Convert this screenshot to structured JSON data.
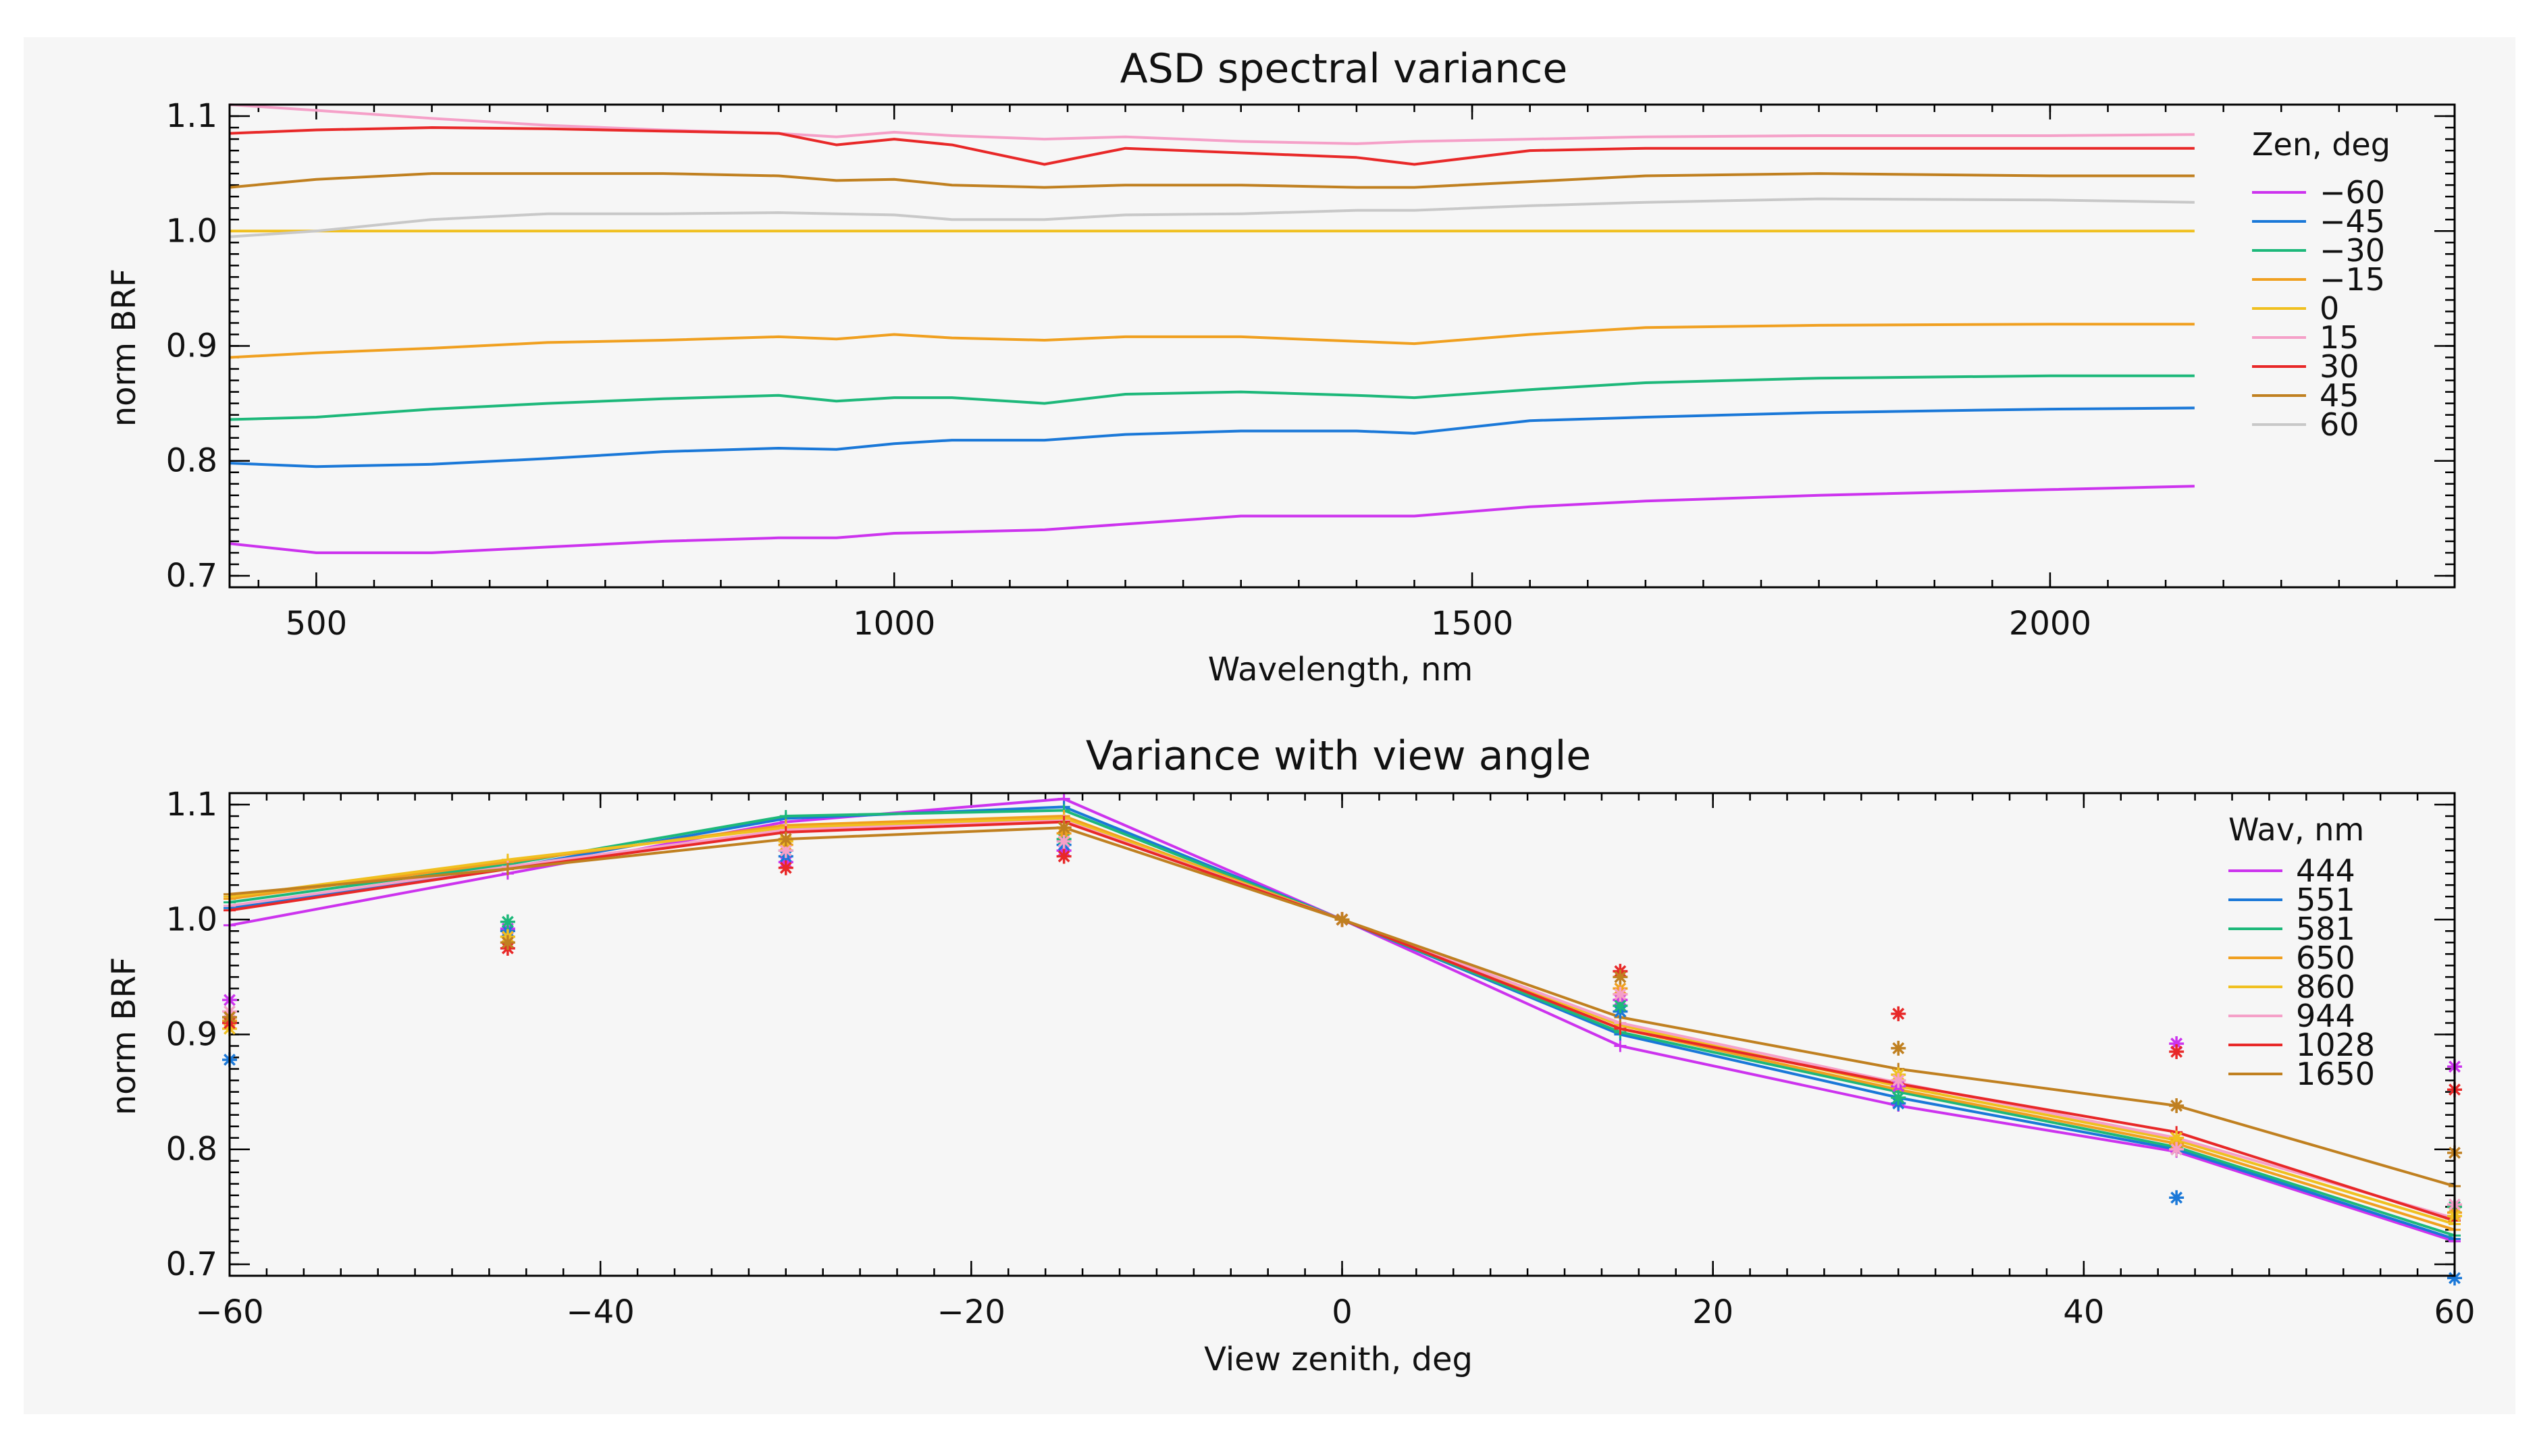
{
  "chart_data": [
    {
      "type": "line",
      "title": "ASD spectral variance",
      "xlabel": "Wavelength, nm",
      "ylabel": "norm BRF",
      "xlim": [
        425,
        2350
      ],
      "ylim": [
        0.69,
        1.11
      ],
      "xticks": [
        500,
        1000,
        1500,
        2000
      ],
      "yticks": [
        0.7,
        0.8,
        0.9,
        1.0,
        1.1
      ],
      "ytick_labels": [
        "0.7",
        "0.8",
        "0.9",
        "1.0",
        "1.1"
      ],
      "legend_title": "Zen, deg",
      "legend_position": "right",
      "grid": false,
      "series": [
        {
          "name": "−60",
          "color": "#cc33ee",
          "x": [
            425,
            500,
            600,
            700,
            800,
            900,
            950,
            1000,
            1050,
            1130,
            1200,
            1300,
            1400,
            1450,
            1550,
            1650,
            1800,
            2000,
            2125
          ],
          "y": [
            0.728,
            0.72,
            0.72,
            0.725,
            0.73,
            0.733,
            0.733,
            0.737,
            0.738,
            0.74,
            0.745,
            0.752,
            0.752,
            0.752,
            0.76,
            0.765,
            0.77,
            0.775,
            0.778
          ]
        },
        {
          "name": "−45",
          "color": "#1a78d8",
          "x": [
            425,
            500,
            600,
            700,
            800,
            900,
            950,
            1000,
            1050,
            1130,
            1200,
            1300,
            1400,
            1450,
            1550,
            1650,
            1800,
            2000,
            2125
          ],
          "y": [
            0.798,
            0.795,
            0.797,
            0.802,
            0.808,
            0.811,
            0.81,
            0.815,
            0.818,
            0.818,
            0.823,
            0.826,
            0.826,
            0.824,
            0.835,
            0.838,
            0.842,
            0.845,
            0.846
          ]
        },
        {
          "name": "−30",
          "color": "#1db87a",
          "x": [
            425,
            500,
            600,
            700,
            800,
            900,
            950,
            1000,
            1050,
            1130,
            1200,
            1300,
            1400,
            1450,
            1550,
            1650,
            1800,
            2000,
            2125
          ],
          "y": [
            0.836,
            0.838,
            0.845,
            0.85,
            0.854,
            0.857,
            0.852,
            0.855,
            0.855,
            0.85,
            0.858,
            0.86,
            0.857,
            0.855,
            0.862,
            0.868,
            0.872,
            0.874,
            0.874
          ]
        },
        {
          "name": "−15",
          "color": "#f0a020",
          "x": [
            425,
            500,
            600,
            700,
            800,
            900,
            950,
            1000,
            1050,
            1130,
            1200,
            1300,
            1400,
            1450,
            1550,
            1650,
            1800,
            2000,
            2125
          ],
          "y": [
            0.89,
            0.894,
            0.898,
            0.903,
            0.905,
            0.908,
            0.906,
            0.91,
            0.907,
            0.905,
            0.908,
            0.908,
            0.904,
            0.902,
            0.91,
            0.916,
            0.918,
            0.919,
            0.919
          ]
        },
        {
          "name": "0",
          "color": "#f0c020",
          "x": [
            425,
            2125
          ],
          "y": [
            1.0,
            1.0
          ]
        },
        {
          "name": "15",
          "color": "#f5a0c8",
          "x": [
            425,
            500,
            600,
            700,
            800,
            900,
            950,
            1000,
            1050,
            1130,
            1200,
            1300,
            1400,
            1450,
            1550,
            1650,
            1800,
            2000,
            2125
          ],
          "y": [
            1.11,
            1.105,
            1.098,
            1.092,
            1.088,
            1.085,
            1.082,
            1.086,
            1.083,
            1.08,
            1.082,
            1.078,
            1.076,
            1.078,
            1.08,
            1.082,
            1.083,
            1.083,
            1.084
          ]
        },
        {
          "name": "30",
          "color": "#e82828",
          "x": [
            425,
            500,
            600,
            700,
            800,
            900,
            950,
            1000,
            1050,
            1130,
            1200,
            1300,
            1400,
            1450,
            1550,
            1650,
            1800,
            2000,
            2125
          ],
          "y": [
            1.085,
            1.088,
            1.09,
            1.089,
            1.087,
            1.085,
            1.075,
            1.08,
            1.075,
            1.058,
            1.072,
            1.068,
            1.064,
            1.058,
            1.07,
            1.072,
            1.072,
            1.072,
            1.072
          ]
        },
        {
          "name": "45",
          "color": "#c08020",
          "x": [
            425,
            500,
            600,
            700,
            800,
            900,
            950,
            1000,
            1050,
            1130,
            1200,
            1300,
            1400,
            1450,
            1550,
            1650,
            1800,
            2000,
            2125
          ],
          "y": [
            1.038,
            1.045,
            1.05,
            1.05,
            1.05,
            1.048,
            1.044,
            1.045,
            1.04,
            1.038,
            1.04,
            1.04,
            1.038,
            1.038,
            1.043,
            1.048,
            1.05,
            1.048,
            1.048
          ]
        },
        {
          "name": "60",
          "color": "#c8c8c8",
          "x": [
            425,
            500,
            600,
            700,
            800,
            900,
            950,
            1000,
            1050,
            1130,
            1200,
            1300,
            1400,
            1450,
            1550,
            1650,
            1800,
            2000,
            2125
          ],
          "y": [
            0.995,
            1.0,
            1.01,
            1.015,
            1.015,
            1.016,
            1.015,
            1.014,
            1.01,
            1.01,
            1.014,
            1.015,
            1.018,
            1.018,
            1.022,
            1.025,
            1.028,
            1.027,
            1.025
          ]
        }
      ]
    },
    {
      "type": "line",
      "title": "Variance with view angle",
      "xlabel": "View zenith, deg",
      "ylabel": "norm BRF",
      "xlim": [
        -60,
        60
      ],
      "ylim": [
        0.69,
        1.11
      ],
      "xticks": [
        -60,
        -40,
        -20,
        0,
        20,
        40,
        60
      ],
      "xtick_labels": [
        "−60",
        "−40",
        "−20",
        "0",
        "20",
        "40",
        "60"
      ],
      "yticks": [
        0.7,
        0.8,
        0.9,
        1.0,
        1.1
      ],
      "ytick_labels": [
        "0.7",
        "0.8",
        "0.9",
        "1.0",
        "1.1"
      ],
      "legend_title": "Wav, nm",
      "legend_position": "top-right",
      "grid": false,
      "x": [
        -60,
        -45,
        -30,
        -15,
        0,
        15,
        30,
        45,
        60
      ],
      "series": [
        {
          "name": "444",
          "color": "#cc33ee",
          "lines": [
            0.995,
            1.04,
            1.085,
            1.105,
            1.0,
            0.89,
            0.838,
            0.798,
            0.72
          ],
          "points": [
            0.93,
            0.992,
            1.05,
            1.06,
            1.0,
            0.93,
            0.855,
            0.892,
            0.872
          ]
        },
        {
          "name": "551",
          "color": "#1a78d8",
          "lines": [
            1.01,
            1.045,
            1.088,
            1.098,
            1.0,
            0.9,
            0.845,
            0.8,
            0.722
          ],
          "points": [
            0.878,
            0.99,
            1.055,
            1.065,
            1.0,
            0.92,
            0.84,
            0.758,
            0.688
          ]
        },
        {
          "name": "581",
          "color": "#1db87a",
          "lines": [
            1.015,
            1.048,
            1.09,
            1.095,
            1.0,
            0.902,
            0.85,
            0.802,
            0.725
          ],
          "points": [
            0.915,
            0.998,
            1.06,
            1.07,
            1.0,
            0.925,
            0.845,
            0.8,
            0.75
          ]
        },
        {
          "name": "650",
          "color": "#f0a020",
          "lines": [
            1.018,
            1.05,
            1.082,
            1.09,
            1.0,
            0.905,
            0.852,
            0.805,
            0.73
          ],
          "points": [
            0.912,
            0.985,
            1.065,
            1.075,
            1.0,
            0.94,
            0.86,
            0.805,
            0.745
          ]
        },
        {
          "name": "860",
          "color": "#f0c020",
          "lines": [
            1.02,
            1.052,
            1.08,
            1.088,
            1.0,
            0.908,
            0.855,
            0.808,
            0.735
          ],
          "points": [
            0.905,
            0.985,
            1.068,
            1.08,
            1.0,
            0.935,
            0.865,
            0.81,
            0.742
          ]
        },
        {
          "name": "944",
          "color": "#f5a0c8",
          "lines": [
            1.012,
            1.046,
            1.078,
            1.086,
            1.0,
            0.91,
            0.858,
            0.81,
            0.74
          ],
          "points": [
            0.92,
            0.98,
            1.06,
            1.068,
            1.0,
            0.935,
            0.86,
            0.8,
            0.752
          ]
        },
        {
          "name": "1028",
          "color": "#e82828",
          "lines": [
            1.008,
            1.044,
            1.076,
            1.085,
            1.0,
            0.905,
            0.857,
            0.815,
            0.738
          ],
          "points": [
            0.91,
            0.975,
            1.045,
            1.055,
            1.0,
            0.955,
            0.918,
            0.885,
            0.852
          ]
        },
        {
          "name": "1650",
          "color": "#c08020",
          "lines": [
            1.022,
            1.044,
            1.07,
            1.08,
            1.0,
            0.915,
            0.87,
            0.838,
            0.768
          ],
          "points": [
            0.915,
            0.98,
            1.07,
            1.08,
            1.0,
            0.95,
            0.888,
            0.838,
            0.797
          ]
        }
      ]
    }
  ]
}
